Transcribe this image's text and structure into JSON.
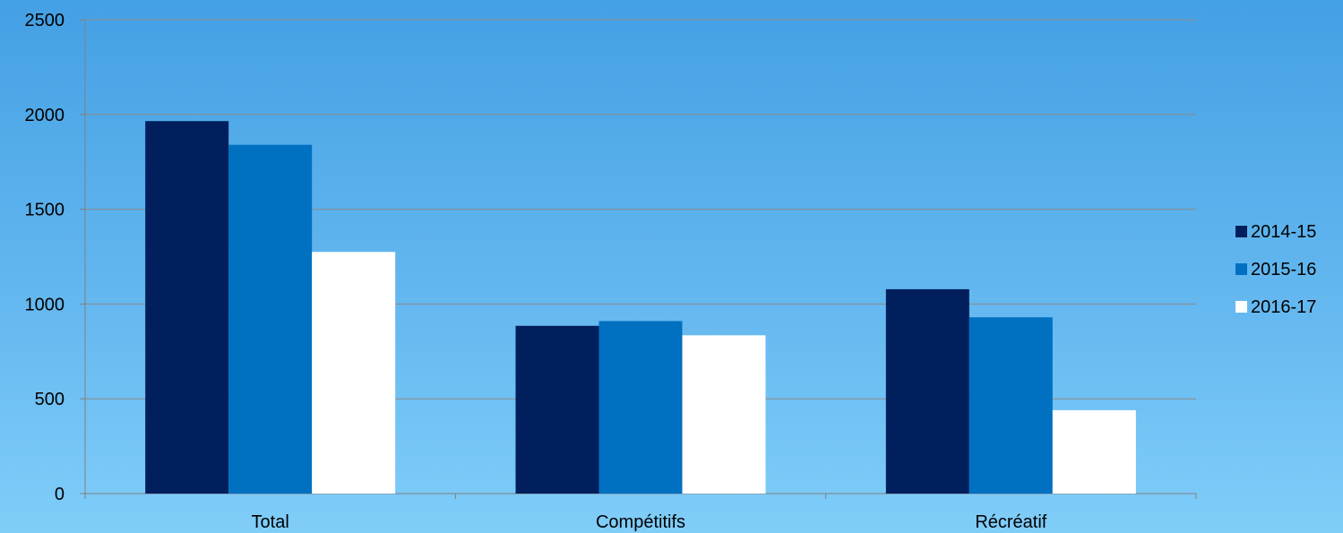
{
  "chart_data": {
    "type": "bar",
    "categories": [
      "Total",
      "Compétitifs",
      "Récréatif"
    ],
    "series": [
      {
        "name": "2014-15",
        "color": "#001f5c",
        "values": [
          1965,
          885,
          1078
        ]
      },
      {
        "name": "2015-16",
        "color": "#0070c0",
        "values": [
          1840,
          910,
          930
        ]
      },
      {
        "name": "2016-17",
        "color": "#ffffff",
        "values": [
          1275,
          835,
          440
        ]
      }
    ],
    "ylim": [
      0,
      2500
    ],
    "yticks": [
      0,
      500,
      1000,
      1500,
      2000,
      2500
    ],
    "grid": true,
    "legend_position": "right"
  }
}
